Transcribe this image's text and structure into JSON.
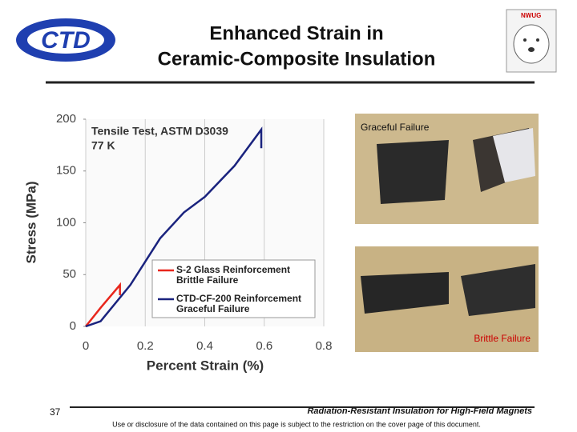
{
  "slide": {
    "title": "Enhanced Strain in",
    "title2": "Ceramic-Composite Insulation",
    "logo_right": "NWUG",
    "photo_top_caption": "Graceful Failure",
    "photo_bottom_caption": "Brittle Failure",
    "page_number": "37",
    "footer_title": "Radiation-Resistant Insulation for High-Field Magnets",
    "disclaimer": "Use or disclosure of the data contained on this page is subject to the restriction on the cover page of this document."
  },
  "chart_data": {
    "type": "line",
    "x_label": "Percent Strain (%)",
    "y_label": "Stress (MPa)",
    "annotations": [
      "Tensile Test, ASTM D3039",
      "77 K"
    ],
    "xlim": [
      0,
      0.8
    ],
    "ylim": [
      0,
      200
    ],
    "xticks": [
      0,
      0.2,
      0.4,
      0.6,
      0.8
    ],
    "yticks": [
      0,
      50,
      100,
      150,
      200
    ],
    "grid": "x",
    "series": [
      {
        "name": "S-2 Glass Reinforcement Brittle Failure",
        "color": "#e8261c",
        "x": [
          0,
          0.05,
          0.115,
          0.115
        ],
        "values": [
          0,
          18,
          40,
          30
        ]
      },
      {
        "name": "CTD-CF-200 Reinforcement Graceful Failure",
        "color": "#1a237e",
        "x": [
          0,
          0.05,
          0.15,
          0.25,
          0.33,
          0.4,
          0.5,
          0.59,
          0.59
        ],
        "values": [
          0,
          5,
          40,
          85,
          110,
          125,
          155,
          190,
          172
        ]
      }
    ]
  }
}
